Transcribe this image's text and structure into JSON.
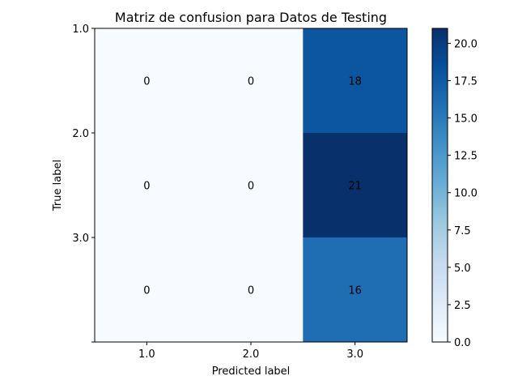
{
  "chart_data": {
    "type": "heatmap",
    "title": "Matriz de confusion para Datos de Testing",
    "xlabel": "Predicted label",
    "ylabel": "True label",
    "x_categories": [
      "1.0",
      "2.0",
      "3.0"
    ],
    "y_tick_labels": [
      "1.0",
      "2.0",
      "3.0",
      ""
    ],
    "matrix": [
      [
        0,
        0,
        18
      ],
      [
        0,
        0,
        21
      ],
      [
        0,
        0,
        16
      ]
    ],
    "colormap": "Blues",
    "color_range": [
      0,
      21
    ],
    "colorbar_ticks": [
      "0.0",
      "2.5",
      "5.0",
      "7.5",
      "10.0",
      "12.5",
      "15.0",
      "17.5",
      "20.0"
    ],
    "colorbar_tick_values": [
      0,
      2.5,
      5,
      7.5,
      10,
      12.5,
      15,
      17.5,
      20
    ],
    "cell_text_colors": {
      "light": "#ffffff",
      "dark": "#000000"
    },
    "grid": false,
    "legend": "colorbar-right"
  }
}
